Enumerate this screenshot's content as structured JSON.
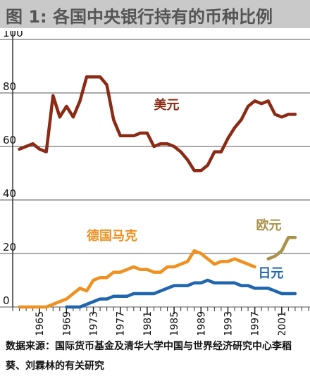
{
  "figure": {
    "title": "图 1: 各国中央银行持有的币种比例",
    "source": "数据来源：国际货币基金及清华大学中国与世界经济研究中心李稻葵、刘霖林的有关研究"
  },
  "chart_data": {
    "type": "line",
    "title": "图 1: 各国中央银行持有的币种比例",
    "xlabel": "",
    "ylabel": "",
    "xlim": [
      1961,
      2005
    ],
    "ylim": [
      0,
      100
    ],
    "y_ticks": [
      0,
      20,
      40,
      60,
      80,
      100
    ],
    "x_ticks": [
      1965,
      1969,
      1973,
      1977,
      1981,
      1985,
      1989,
      1993,
      1997,
      2001
    ],
    "grid": true,
    "series": [
      {
        "name": "美元",
        "color": "#8b2a15",
        "x": [
          1962,
          1963,
          1964,
          1965,
          1966,
          1967,
          1968,
          1969,
          1970,
          1971,
          1972,
          1973,
          1974,
          1975,
          1976,
          1977,
          1978,
          1979,
          1980,
          1981,
          1982,
          1983,
          1984,
          1985,
          1986,
          1987,
          1988,
          1989,
          1990,
          1991,
          1992,
          1993,
          1994,
          1995,
          1996,
          1997,
          1998,
          1999,
          2000,
          2001,
          2002,
          2003
        ],
        "values": [
          59,
          60,
          61,
          59,
          58,
          79,
          71,
          75,
          71,
          77,
          86,
          86,
          86,
          83,
          70,
          64,
          64,
          64,
          65,
          65,
          60,
          61,
          61,
          60,
          58,
          55,
          51,
          51,
          53,
          58,
          58,
          63,
          67,
          70,
          75,
          77,
          76,
          77,
          72,
          71,
          72,
          72
        ]
      },
      {
        "name": "德国马克",
        "color": "#f0901e",
        "x": [
          1962,
          1963,
          1964,
          1965,
          1966,
          1967,
          1968,
          1969,
          1970,
          1971,
          1972,
          1973,
          1974,
          1975,
          1976,
          1977,
          1978,
          1979,
          1980,
          1981,
          1982,
          1983,
          1984,
          1985,
          1986,
          1987,
          1988,
          1989,
          1990,
          1991,
          1992,
          1993,
          1994,
          1995,
          1996,
          1997
        ],
        "values": [
          0,
          0,
          0,
          0,
          0,
          1,
          2,
          3,
          5,
          7,
          6,
          10,
          11,
          11,
          13,
          13,
          14,
          15,
          14,
          14,
          13,
          13,
          15,
          15,
          16,
          17,
          21,
          20,
          18,
          16,
          17,
          17,
          18,
          17,
          16,
          15
        ]
      },
      {
        "name": "日元",
        "color": "#1f66b0",
        "x": [
          1969,
          1970,
          1971,
          1972,
          1973,
          1974,
          1975,
          1976,
          1977,
          1978,
          1979,
          1980,
          1981,
          1982,
          1983,
          1984,
          1985,
          1986,
          1987,
          1988,
          1989,
          1990,
          1991,
          1992,
          1993,
          1994,
          1995,
          1996,
          1997,
          1998,
          1999,
          2000,
          2001,
          2002,
          2003
        ],
        "values": [
          0,
          0,
          0,
          1,
          2,
          3,
          3,
          4,
          4,
          4,
          5,
          5,
          5,
          5,
          6,
          7,
          8,
          8,
          8,
          9,
          9,
          10,
          9,
          9,
          9,
          9,
          8,
          8,
          7,
          7,
          7,
          6,
          5,
          5,
          5
        ]
      },
      {
        "name": "欧元",
        "color": "#a8914a",
        "x": [
          1999,
          2000,
          2001,
          2002,
          2003
        ],
        "values": [
          18,
          19,
          21,
          26,
          26
        ]
      }
    ],
    "series_labels": [
      {
        "series": 0,
        "text": "美元",
        "x": 1982,
        "y": 74
      },
      {
        "series": 1,
        "text": "德国马克",
        "x": 1972,
        "y": 25
      },
      {
        "series": 2,
        "text": "日元",
        "x": 1997.5,
        "y": 11
      },
      {
        "series": 3,
        "text": "欧元",
        "x": 1997.2,
        "y": 29
      }
    ]
  }
}
